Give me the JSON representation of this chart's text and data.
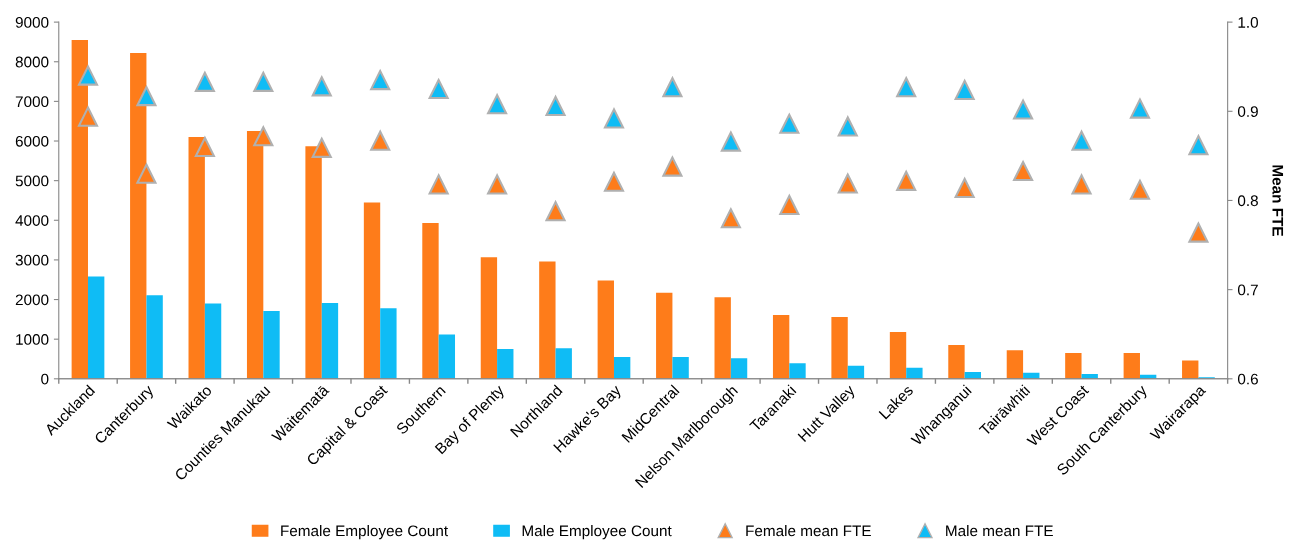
{
  "chart_data": {
    "type": "bar",
    "y2label": "Mean FTE",
    "categories": [
      "Auckland",
      "Canterbury",
      "Waikato",
      "Counties Manukau",
      "Waitematā",
      "Capital & Coast",
      "Southern",
      "Bay of Plenty",
      "Northland",
      "Hawke's Bay",
      "MidCentral",
      "Nelson Marlborough",
      "Taranaki",
      "Hutt Valley",
      "Lakes",
      "Whanganui",
      "Tairāwhiti",
      "West Coast",
      "South Canterbury",
      "Wairarapa"
    ],
    "series": [
      {
        "name": "Female Employee Count",
        "color": "#fe7c1a",
        "values": [
          8550,
          8220,
          6100,
          6250,
          5870,
          4450,
          3930,
          3070,
          2960,
          2480,
          2170,
          2060,
          1610,
          1560,
          1180,
          850,
          720,
          650,
          650,
          460
        ]
      },
      {
        "name": "Male Employee Count",
        "color": "#0fbcf5",
        "values": [
          2580,
          2110,
          1900,
          1710,
          1910,
          1780,
          1120,
          750,
          770,
          550,
          550,
          520,
          390,
          330,
          280,
          170,
          150,
          120,
          100,
          40
        ]
      },
      {
        "name": "Female mean FTE",
        "type": "scatter",
        "axis": "y2",
        "marker": "triangle",
        "color": "#fe7c1a",
        "values": [
          0.894,
          0.83,
          0.86,
          0.872,
          0.859,
          0.867,
          0.818,
          0.818,
          0.788,
          0.821,
          0.838,
          0.78,
          0.795,
          0.819,
          0.822,
          0.814,
          0.833,
          0.818,
          0.812,
          0.764
        ]
      },
      {
        "name": "Male mean FTE",
        "type": "scatter",
        "axis": "y2",
        "marker": "triangle",
        "color": "#0fbcf5",
        "values": [
          0.94,
          0.917,
          0.933,
          0.933,
          0.928,
          0.935,
          0.925,
          0.908,
          0.906,
          0.892,
          0.927,
          0.866,
          0.886,
          0.883,
          0.927,
          0.924,
          0.902,
          0.867,
          0.903,
          0.862
        ]
      }
    ],
    "ylim": [
      0,
      9000
    ],
    "yticks": [
      0,
      1000,
      2000,
      3000,
      4000,
      5000,
      6000,
      7000,
      8000,
      9000
    ],
    "y2lim": [
      0.6,
      1.0
    ],
    "y2ticks": [
      {
        "value": 0.6,
        "label": "0.6"
      },
      {
        "value": 0.7,
        "label": "0.7"
      },
      {
        "value": 0.8,
        "label": "0.8"
      },
      {
        "value": 0.9,
        "label": "0.9"
      },
      {
        "value": 1.0,
        "label": "1.0"
      }
    ],
    "grid": false,
    "legend": "bottom"
  }
}
